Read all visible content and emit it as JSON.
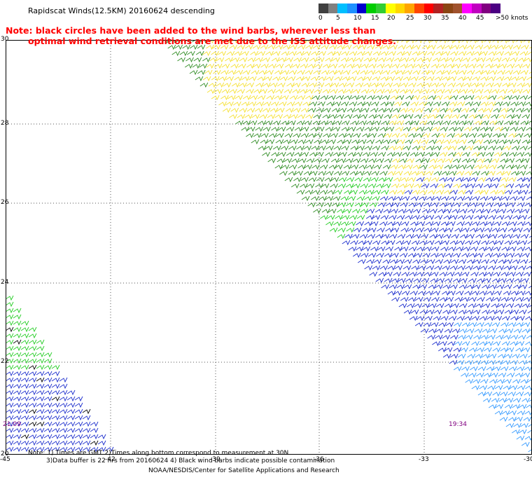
{
  "title": "Rapidscat Winds(12.5KM) 20160624 descending",
  "note_line1": "Note: black circles have been added to the wind barbs, wherever less than",
  "note_line2": "optimal wind retrieval conditions are met due to the ISS attitude changes.",
  "colorbar": {
    "colors": [
      "#404040",
      "#808080",
      "#00bfff",
      "#1e90ff",
      "#0000cd",
      "#00cd00",
      "#32cd32",
      "#ffff00",
      "#ffd700",
      "#ffa500",
      "#ff4500",
      "#ff0000",
      "#b22222",
      "#8b4513",
      "#a0522d",
      "#ff00ff",
      "#c000c0",
      "#800080",
      "#4b0082"
    ],
    "labels": [
      "0",
      "5",
      "10",
      "15",
      "20",
      "25",
      "30",
      "35",
      "40",
      "45",
      ">50 knots"
    ]
  },
  "axes": {
    "lon_labels": [
      "-45",
      "-42",
      "-39",
      "-36",
      "-33",
      "-30"
    ],
    "lat_labels": [
      "30",
      "28",
      "26",
      "24",
      "22",
      "20"
    ]
  },
  "swath_times": {
    "left": "21:09",
    "right": "19:34"
  },
  "footer": {
    "line1": "Note: 1) Times are GMT 2)Times along bottom correspond to measurement at 30N",
    "line2": "3)Data buffer is 22 hrs from 20160624 4) Black wind barbs indicate possible contamination",
    "credit": "NOAA/NESDIS/Center for Satellite Applications and Research"
  },
  "barb_colors": {
    "dark_green": "#2e8b22",
    "green": "#22cc22",
    "yellow": "#f5e030",
    "blue": "#1a2ccc",
    "light_blue": "#3399ff",
    "black": "#000000"
  }
}
